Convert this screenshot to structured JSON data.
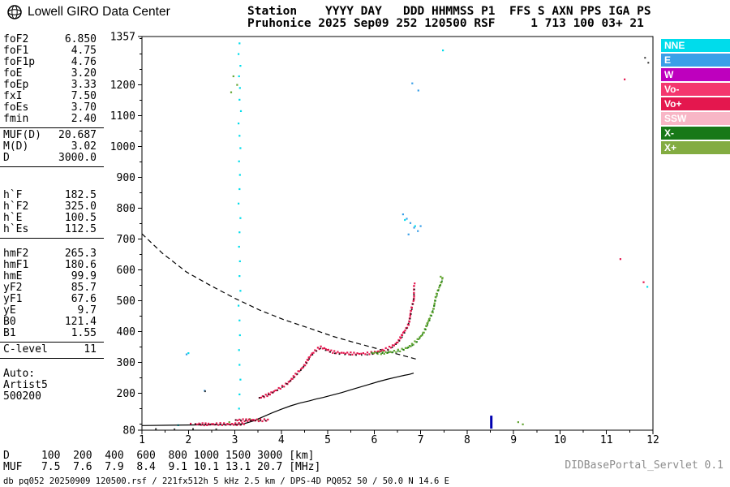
{
  "header": {
    "logo_text": "Lowell GIRO Data Center",
    "info_line1": "Station    YYYY DAY   DDD HHMMSS P1  FFS S AXN PPS IGA PS",
    "info_line2": "Pruhonice 2025 Sep09 252 120500 RSF     1 713 100 03+ 21"
  },
  "params": {
    "sections": [
      {
        "rule": true,
        "gap": "",
        "rows": [
          [
            "foF2",
            "6.850"
          ],
          [
            "foF1",
            "4.75"
          ],
          [
            "foF1p",
            "4.76"
          ],
          [
            "foE",
            "3.20"
          ],
          [
            "foEp",
            "3.33"
          ],
          [
            "fxI",
            "7.50"
          ],
          [
            "foEs",
            "3.70"
          ],
          [
            "fmin",
            "2.40"
          ]
        ]
      },
      {
        "rule": true,
        "gap": "",
        "rows": [
          [
            "MUF(D)",
            "20.687"
          ],
          [
            "M(D)",
            "3.02"
          ],
          [
            "D",
            "3000.0"
          ]
        ]
      },
      {
        "rule": true,
        "gap": "gap-lg",
        "rows": [
          [
            "h`F",
            "182.5"
          ],
          [
            "h`F2",
            "325.0"
          ],
          [
            "h`E",
            "100.5"
          ],
          [
            "h`Es",
            "112.5"
          ]
        ]
      },
      {
        "rule": true,
        "gap": "gap-sm",
        "rows": [
          [
            "hmF2",
            "265.3"
          ],
          [
            "hmF1",
            "180.6"
          ],
          [
            "hmE",
            "99.9"
          ],
          [
            "yF2",
            "85.7"
          ],
          [
            "yF1",
            "67.6"
          ],
          [
            "yE",
            "9.7"
          ],
          [
            "B0",
            "121.4"
          ],
          [
            "B1",
            "1.55"
          ]
        ]
      },
      {
        "rule": true,
        "gap": "",
        "rows": [
          [
            "C-level",
            "11"
          ]
        ]
      }
    ],
    "auto_label": "Auto:",
    "auto_lines": [
      "Artist5",
      "500200"
    ]
  },
  "legend": [
    {
      "label": "NNE",
      "color": "#00DCEB"
    },
    {
      "label": "E",
      "color": "#3A9FE8"
    },
    {
      "label": "W",
      "color": "#BE00BE"
    },
    {
      "label": "Vo-",
      "color": "#F4366E"
    },
    {
      "label": "Vo+",
      "color": "#E4174E"
    },
    {
      "label": "SSW",
      "color": "#F8B6C6"
    },
    {
      "label": "X-",
      "color": "#187818"
    },
    {
      "label": "X+",
      "color": "#83AC41"
    }
  ],
  "footer": {
    "d_line": "D     100  200  400  600  800 1000 1500 3000 [km]",
    "muf_line": "MUF   7.5  7.6  7.9  8.4  9.1 10.1 13.1 20.7 [MHz]",
    "db_line": "db pq052 20250909 120500.rsf / 221fx512h 5 kHz 2.5 km / DPS-4D PQ052 50 / 50.0 N 14.6 E",
    "servlet": "DIDBasePortal_Servlet 0.1"
  },
  "chart_data": {
    "type": "scatter",
    "title": "",
    "xlabel": "[MHz]",
    "ylabel": "[km]",
    "xlim": [
      1,
      12
    ],
    "ylim": [
      80,
      1357
    ],
    "x_ticks": [
      1,
      2,
      3,
      4,
      5,
      6,
      7,
      8,
      9,
      10,
      11,
      12
    ],
    "y_ticks": [
      80,
      200,
      300,
      400,
      500,
      600,
      700,
      800,
      900,
      1000,
      1100,
      1200,
      1357
    ],
    "grid": false,
    "legend_position": "right",
    "series": [
      {
        "name": "noise-nne",
        "style": "scatter",
        "color": "#00DCEB",
        "size": 2.2,
        "points": [
          [
            3.1,
            1335
          ],
          [
            3.08,
            1300
          ],
          [
            3.12,
            1262
          ],
          [
            3.09,
            1228
          ],
          [
            3.11,
            1190
          ],
          [
            3.1,
            1152
          ],
          [
            3.13,
            1115
          ],
          [
            3.08,
            1075
          ],
          [
            3.1,
            1035
          ],
          [
            3.12,
            995
          ],
          [
            3.09,
            952
          ],
          [
            3.11,
            908
          ],
          [
            3.1,
            862
          ],
          [
            3.08,
            815
          ],
          [
            3.12,
            768
          ],
          [
            3.1,
            722
          ],
          [
            3.09,
            675
          ],
          [
            3.11,
            628
          ],
          [
            3.1,
            580
          ],
          [
            3.12,
            532
          ],
          [
            3.08,
            484
          ],
          [
            3.1,
            436
          ],
          [
            3.11,
            388
          ],
          [
            3.09,
            340
          ],
          [
            3.1,
            292
          ],
          [
            3.12,
            244
          ],
          [
            3.1,
            196
          ],
          [
            3.09,
            150
          ],
          [
            2.0,
            330
          ],
          [
            1.78,
            96
          ],
          [
            6.66,
            762
          ],
          [
            6.88,
            742
          ],
          [
            11.88,
            545
          ],
          [
            7.48,
            1312
          ]
        ]
      },
      {
        "name": "noise-e",
        "style": "scatter",
        "color": "#3A9FE8",
        "size": 2.2,
        "points": [
          [
            6.62,
            780
          ],
          [
            6.7,
            766
          ],
          [
            6.78,
            752
          ],
          [
            6.86,
            737
          ],
          [
            6.94,
            726
          ],
          [
            7.0,
            742
          ],
          [
            6.74,
            715
          ],
          [
            6.82,
            1205
          ],
          [
            6.95,
            1182
          ],
          [
            1.96,
            326
          ],
          [
            2.35,
            208
          ]
        ]
      },
      {
        "name": "noise-x",
        "style": "scatter",
        "color": "#63A532",
        "size": 2.2,
        "points": [
          [
            2.97,
            1228
          ],
          [
            3.05,
            1200
          ],
          [
            2.92,
            1176
          ],
          [
            9.1,
            106
          ],
          [
            9.2,
            99
          ],
          [
            3.32,
            116
          ],
          [
            3.5,
            114
          ],
          [
            2.88,
            106
          ],
          [
            7.47,
            574
          ],
          [
            7.43,
            578
          ]
        ]
      },
      {
        "name": "noise-dark",
        "style": "scatter",
        "color": "#333333",
        "size": 2,
        "points": [
          [
            11.83,
            1288
          ],
          [
            11.9,
            1272
          ],
          [
            2.36,
            206
          ],
          [
            1.3,
            84
          ],
          [
            1.7,
            83
          ],
          [
            2.1,
            84
          ],
          [
            2.6,
            83
          ]
        ]
      },
      {
        "name": "noise-o",
        "style": "scatter",
        "color": "#E4174E",
        "size": 2.2,
        "points": [
          [
            11.3,
            635
          ],
          [
            11.39,
            1218
          ],
          [
            6.87,
            556
          ],
          [
            11.8,
            560
          ],
          [
            2.05,
            101
          ]
        ]
      },
      {
        "name": "noise-vo-minus",
        "style": "scatter",
        "color": "#F4366E",
        "size": 2.2,
        "points": [
          [
            4.66,
            326
          ],
          [
            6.71,
            412
          ],
          [
            6.76,
            442
          ],
          [
            6.83,
            490
          ]
        ]
      },
      {
        "name": "muf3000-transmission-curve",
        "style": "dashed-line",
        "color": "#000000",
        "points": [
          [
            1.0,
            717
          ],
          [
            1.44,
            654
          ],
          [
            1.96,
            593
          ],
          [
            2.48,
            549
          ],
          [
            3.01,
            507
          ],
          [
            3.53,
            470
          ],
          [
            4.06,
            438
          ],
          [
            4.58,
            412
          ],
          [
            5.1,
            385
          ],
          [
            5.63,
            362
          ],
          [
            6.15,
            341
          ],
          [
            6.67,
            320
          ],
          [
            6.94,
            309
          ]
        ]
      },
      {
        "name": "true-height-profile",
        "style": "line",
        "color": "#000000",
        "points": [
          [
            1.0,
            95
          ],
          [
            1.6,
            96
          ],
          [
            2.2,
            97
          ],
          [
            2.7,
            98
          ],
          [
            3.0,
            99
          ],
          [
            3.2,
            101
          ],
          [
            3.4,
            110
          ],
          [
            3.6,
            123
          ],
          [
            3.8,
            136
          ],
          [
            4.0,
            148
          ],
          [
            4.2,
            159
          ],
          [
            4.4,
            168
          ],
          [
            4.6,
            175
          ],
          [
            4.75,
            181
          ],
          [
            4.9,
            186
          ],
          [
            5.1,
            194
          ],
          [
            5.3,
            202
          ],
          [
            5.5,
            211
          ],
          [
            5.7,
            220
          ],
          [
            5.9,
            229
          ],
          [
            6.1,
            238
          ],
          [
            6.3,
            246
          ],
          [
            6.5,
            253
          ],
          [
            6.65,
            258
          ],
          [
            6.75,
            261
          ],
          [
            6.85,
            265
          ]
        ]
      },
      {
        "name": "e-trace-o-mode",
        "style": "trace",
        "color": "#E4174E",
        "accent": "#1A1A1A",
        "points": [
          [
            2.15,
            100
          ],
          [
            2.4,
            99
          ],
          [
            2.65,
            100
          ],
          [
            2.9,
            99
          ],
          [
            3.1,
            100
          ],
          [
            3.2,
            101
          ]
        ]
      },
      {
        "name": "es-trace-o-mode",
        "style": "trace",
        "color": "#E4174E",
        "accent": "#1A1A1A",
        "points": [
          [
            3.02,
            113
          ],
          [
            3.2,
            112
          ],
          [
            3.38,
            113
          ],
          [
            3.55,
            112
          ],
          [
            3.7,
            113
          ]
        ]
      },
      {
        "name": "f-trace-o-mode",
        "style": "trace",
        "color": "#E4174E",
        "accent": "#1A1A1A",
        "points": [
          [
            3.53,
            185
          ],
          [
            3.62,
            190
          ],
          [
            3.72,
            196
          ],
          [
            3.82,
            203
          ],
          [
            3.92,
            211
          ],
          [
            4.02,
            221
          ],
          [
            4.12,
            232
          ],
          [
            4.22,
            245
          ],
          [
            4.32,
            260
          ],
          [
            4.42,
            277
          ],
          [
            4.52,
            297
          ],
          [
            4.62,
            318
          ],
          [
            4.7,
            333
          ],
          [
            4.78,
            344
          ],
          [
            4.84,
            349
          ],
          [
            4.92,
            345
          ],
          [
            5.02,
            339
          ],
          [
            5.12,
            334
          ],
          [
            5.25,
            331
          ],
          [
            5.45,
            329
          ],
          [
            5.65,
            328
          ],
          [
            5.85,
            329
          ],
          [
            6.0,
            332
          ],
          [
            6.15,
            337
          ],
          [
            6.3,
            345
          ],
          [
            6.42,
            356
          ],
          [
            6.52,
            370
          ],
          [
            6.6,
            386
          ],
          [
            6.67,
            404
          ],
          [
            6.73,
            425
          ],
          [
            6.78,
            450
          ],
          [
            6.81,
            475
          ],
          [
            6.84,
            503
          ],
          [
            6.86,
            528
          ],
          [
            6.87,
            550
          ]
        ]
      },
      {
        "name": "f-trace-x-mode",
        "style": "trace",
        "color": "#63A532",
        "accent": "#187818",
        "points": [
          [
            5.95,
            331
          ],
          [
            6.1,
            330
          ],
          [
            6.25,
            331
          ],
          [
            6.4,
            334
          ],
          [
            6.55,
            339
          ],
          [
            6.7,
            347
          ],
          [
            6.82,
            357
          ],
          [
            6.92,
            369
          ],
          [
            7.02,
            389
          ],
          [
            7.1,
            410
          ],
          [
            7.18,
            434
          ],
          [
            7.25,
            465
          ],
          [
            7.31,
            498
          ],
          [
            7.36,
            525
          ],
          [
            7.4,
            548
          ],
          [
            7.44,
            562
          ],
          [
            7.46,
            568
          ]
        ]
      },
      {
        "name": "interference-bar",
        "style": "vbar",
        "color": "#0000B0",
        "f": 8.52,
        "h1": 85,
        "h2": 127,
        "width": 3
      }
    ]
  }
}
